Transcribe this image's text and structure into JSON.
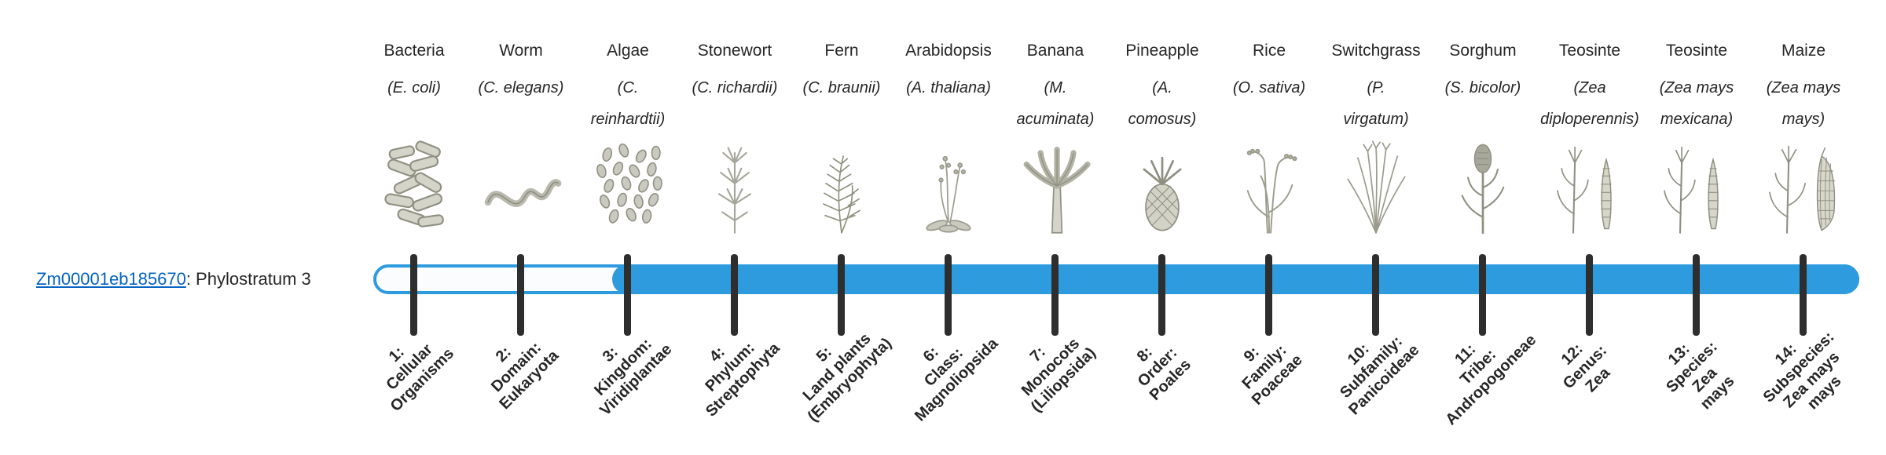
{
  "colors": {
    "bar": "#2E9BDF",
    "bar_track": "#FAFCFD",
    "tick": "#2E2E2E",
    "text": "#262626",
    "link": "#0563C1"
  },
  "gene": {
    "link_text": "Zm00001eb185670",
    "suffix_text": ": Phylostratum 3",
    "phylostratum": 3
  },
  "organisms": [
    {
      "name": "Bacteria",
      "sci_lines": [
        "(E. coli)"
      ],
      "icon": "bacteria-icon",
      "tick_label_lines": [
        "1:",
        "Cellular",
        "Organisms"
      ]
    },
    {
      "name": "Worm",
      "sci_lines": [
        "(C. elegans)"
      ],
      "icon": "worm-icon",
      "tick_label_lines": [
        "2:",
        "Domain:",
        "Eukaryota"
      ]
    },
    {
      "name": "Algae",
      "sci_lines": [
        "(C.",
        "reinhardtii)"
      ],
      "icon": "algae-icon",
      "tick_label_lines": [
        "3:",
        "Kingdom:",
        "Viridiplantae"
      ]
    },
    {
      "name": "Stonewort",
      "sci_lines": [
        "(C. richardii)"
      ],
      "icon": "stonewort-icon",
      "tick_label_lines": [
        "4:",
        "Phylum:",
        "Streptophyta"
      ]
    },
    {
      "name": "Fern",
      "sci_lines": [
        "(C. braunii)"
      ],
      "icon": "fern-icon",
      "tick_label_lines": [
        "5:",
        "Land plants",
        "(Embryophyta)"
      ]
    },
    {
      "name": "Arabidopsis",
      "sci_lines": [
        "(A. thaliana)"
      ],
      "icon": "arabidopsis-icon",
      "tick_label_lines": [
        "6:",
        "Class:",
        "Magnoliopsida"
      ]
    },
    {
      "name": "Banana",
      "sci_lines": [
        "(M.",
        "acuminata)"
      ],
      "icon": "banana-icon",
      "tick_label_lines": [
        "7:",
        "Monocots",
        "(Liliopsida)"
      ]
    },
    {
      "name": "Pineapple",
      "sci_lines": [
        "(A.",
        "comosus)"
      ],
      "icon": "pineapple-icon",
      "tick_label_lines": [
        "8:",
        "Order:",
        "Poales"
      ]
    },
    {
      "name": "Rice",
      "sci_lines": [
        "(O. sativa)"
      ],
      "icon": "rice-icon",
      "tick_label_lines": [
        "9:",
        "Family:",
        "Poaceae"
      ]
    },
    {
      "name": "Switchgrass",
      "sci_lines": [
        "(P.",
        "virgatum)"
      ],
      "icon": "switchgrass-icon",
      "tick_label_lines": [
        "10:",
        "Subfamily:",
        "Panicoideae"
      ]
    },
    {
      "name": "Sorghum",
      "sci_lines": [
        "(S. bicolor)"
      ],
      "icon": "sorghum-icon",
      "tick_label_lines": [
        "11:",
        "Tribe:",
        "Andropogoneae"
      ]
    },
    {
      "name": "Teosinte",
      "sci_lines": [
        "(Zea",
        "diploperennis)"
      ],
      "icon": "teosinte-icon",
      "tick_label_lines": [
        "12:",
        "Genus:",
        "Zea"
      ]
    },
    {
      "name": "Teosinte",
      "sci_lines": [
        "(Zea mays",
        "mexicana)"
      ],
      "icon": "teosinte-icon",
      "tick_label_lines": [
        "13:",
        "Species:",
        "Zea",
        "mays"
      ]
    },
    {
      "name": "Maize",
      "sci_lines": [
        "(Zea mays",
        "mays)"
      ],
      "icon": "maize-icon",
      "tick_label_lines": [
        "14:",
        "Subspecies:",
        "Zea mays",
        "mays"
      ]
    }
  ]
}
